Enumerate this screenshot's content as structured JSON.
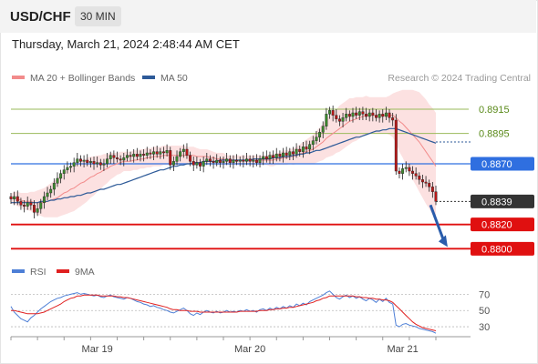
{
  "header": {
    "symbol": "USD/CHF",
    "timeframe": "30 MIN"
  },
  "datetime": "Thursday, March 21, 2024 2:48:44 AM CET",
  "legend": {
    "bollinger_label": "MA 20 + Bollinger Bands",
    "bollinger_color": "#f28b8b",
    "ma50_label": "MA 50",
    "ma50_color": "#2d5a98",
    "rsi_label": "RSI",
    "rsi_color": "#4d7fd6",
    "ma9_label": "9MA",
    "ma9_color": "#e02020"
  },
  "credit": "Research © 2024 Trading Central",
  "chart_data": {
    "type": "candlestick",
    "ylim": [
      0.8795,
      0.893
    ],
    "x_range": [
      0,
      128
    ],
    "xlabels": [
      {
        "t": 26,
        "label": "Mar 19"
      },
      {
        "t": 72,
        "label": "Mar 20"
      },
      {
        "t": 118,
        "label": "Mar 21"
      }
    ],
    "close": [
      0.8841,
      0.8843,
      0.8839,
      0.8836,
      0.8835,
      0.8838,
      0.8836,
      0.883,
      0.8833,
      0.8838,
      0.8843,
      0.8846,
      0.8849,
      0.8854,
      0.8858,
      0.8862,
      0.8865,
      0.8867,
      0.8868,
      0.8871,
      0.8874,
      0.8872,
      0.8873,
      0.8871,
      0.8872,
      0.887,
      0.8871,
      0.8869,
      0.887,
      0.8874,
      0.8877,
      0.8875,
      0.8874,
      0.8873,
      0.8875,
      0.8877,
      0.8876,
      0.8878,
      0.8876,
      0.8878,
      0.8877,
      0.8879,
      0.8878,
      0.888,
      0.8878,
      0.888,
      0.8879,
      0.8881,
      0.8869,
      0.8872,
      0.8876,
      0.888,
      0.8882,
      0.8877,
      0.8872,
      0.8869,
      0.8871,
      0.8868,
      0.8872,
      0.8874,
      0.8872,
      0.8871,
      0.8873,
      0.8871,
      0.8872,
      0.8874,
      0.8871,
      0.8873,
      0.8872,
      0.8873,
      0.8872,
      0.8874,
      0.8872,
      0.8873,
      0.8871,
      0.8874,
      0.8876,
      0.8874,
      0.8877,
      0.8875,
      0.8878,
      0.8876,
      0.8879,
      0.8877,
      0.888,
      0.8878,
      0.8882,
      0.888,
      0.8884,
      0.8882,
      0.8886,
      0.8889,
      0.8892,
      0.8896,
      0.8901,
      0.8911,
      0.8914,
      0.891,
      0.8907,
      0.8905,
      0.8908,
      0.8911,
      0.8909,
      0.8912,
      0.891,
      0.8913,
      0.8911,
      0.8909,
      0.8912,
      0.891,
      0.8908,
      0.8911,
      0.8909,
      0.8912,
      0.8908,
      0.8906,
      0.8864,
      0.8862,
      0.8866,
      0.8867,
      0.8864,
      0.8862,
      0.886,
      0.8857,
      0.8855,
      0.8854,
      0.8851,
      0.8847,
      0.8839
    ],
    "ma20": [
      0.8841,
      0.8842,
      0.8841,
      0.884,
      0.8839,
      0.8839,
      0.8839,
      0.8838,
      0.8838,
      0.8838,
      0.8838,
      0.8839,
      0.884,
      0.8841,
      0.8842,
      0.8844,
      0.8846,
      0.8847,
      0.8849,
      0.885,
      0.8852,
      0.8854,
      0.8855,
      0.8857,
      0.8859,
      0.886,
      0.8862,
      0.8863,
      0.8865,
      0.8866,
      0.8868,
      0.8869,
      0.887,
      0.8871,
      0.8872,
      0.8872,
      0.8872,
      0.8873,
      0.8873,
      0.8874,
      0.8874,
      0.8875,
      0.8875,
      0.8876,
      0.8876,
      0.8876,
      0.8877,
      0.8877,
      0.8877,
      0.8877,
      0.8877,
      0.8877,
      0.8877,
      0.8877,
      0.8877,
      0.8877,
      0.8876,
      0.8876,
      0.8876,
      0.8876,
      0.8875,
      0.8875,
      0.8874,
      0.8874,
      0.8874,
      0.8873,
      0.8873,
      0.8873,
      0.8873,
      0.8873,
      0.8873,
      0.8873,
      0.8873,
      0.8873,
      0.8873,
      0.8873,
      0.8873,
      0.8873,
      0.8873,
      0.8873,
      0.8874,
      0.8874,
      0.8875,
      0.8875,
      0.8876,
      0.8876,
      0.8877,
      0.8878,
      0.8879,
      0.888,
      0.8881,
      0.8882,
      0.8884,
      0.8886,
      0.8888,
      0.8891,
      0.8893,
      0.8895,
      0.8897,
      0.8899,
      0.8901,
      0.8903,
      0.8905,
      0.8906,
      0.8907,
      0.8908,
      0.8909,
      0.891,
      0.891,
      0.891,
      0.891,
      0.891,
      0.891,
      0.891,
      0.891,
      0.891,
      0.8908,
      0.8905,
      0.8903,
      0.89,
      0.8897,
      0.8894,
      0.8891,
      0.8888,
      0.8884,
      0.888,
      0.8876,
      0.8872,
      0.8868
    ],
    "bb_width": [
      0.0004,
      0.0005,
      0.0006,
      0.0006,
      0.0007,
      0.0007,
      0.0008,
      0.0009,
      0.001,
      0.0011,
      0.0012,
      0.0013,
      0.0014,
      0.0015,
      0.0016,
      0.0017,
      0.0018,
      0.0018,
      0.0019,
      0.0019,
      0.0019,
      0.0019,
      0.0018,
      0.0018,
      0.0017,
      0.0016,
      0.0015,
      0.0014,
      0.0013,
      0.0012,
      0.0011,
      0.001,
      0.0009,
      0.0009,
      0.0008,
      0.0008,
      0.0008,
      0.0008,
      0.0008,
      0.0008,
      0.0008,
      0.0008,
      0.0008,
      0.0008,
      0.0008,
      0.0008,
      0.0008,
      0.0008,
      0.0008,
      0.0008,
      0.0008,
      0.0008,
      0.0008,
      0.0007,
      0.0007,
      0.0007,
      0.0007,
      0.0006,
      0.0006,
      0.0006,
      0.0006,
      0.0005,
      0.0005,
      0.0005,
      0.0005,
      0.0004,
      0.0004,
      0.0004,
      0.0004,
      0.0004,
      0.0004,
      0.0004,
      0.0004,
      0.0004,
      0.0004,
      0.0004,
      0.0004,
      0.0004,
      0.0005,
      0.0005,
      0.0005,
      0.0005,
      0.0006,
      0.0006,
      0.0006,
      0.0007,
      0.0007,
      0.0008,
      0.0009,
      0.001,
      0.0011,
      0.0012,
      0.0013,
      0.0014,
      0.0015,
      0.0016,
      0.0017,
      0.0018,
      0.0018,
      0.0019,
      0.0019,
      0.0019,
      0.0019,
      0.0018,
      0.0018,
      0.0017,
      0.0016,
      0.0016,
      0.0015,
      0.0015,
      0.0015,
      0.0015,
      0.0015,
      0.0015,
      0.0016,
      0.0018,
      0.0021,
      0.0025,
      0.0028,
      0.0031,
      0.0034,
      0.0037,
      0.0039,
      0.0041,
      0.0042,
      0.0043,
      0.0043,
      0.0044,
      0.0044
    ],
    "ma50": [
      0.8838,
      0.8838,
      0.8838,
      0.8838,
      0.8838,
      0.8838,
      0.8838,
      0.8838,
      0.8838,
      0.8839,
      0.8839,
      0.8839,
      0.884,
      0.884,
      0.8841,
      0.8841,
      0.8842,
      0.8842,
      0.8843,
      0.8843,
      0.8844,
      0.8844,
      0.8845,
      0.8846,
      0.8846,
      0.8847,
      0.8848,
      0.8849,
      0.8849,
      0.885,
      0.8851,
      0.8852,
      0.8853,
      0.8853,
      0.8854,
      0.8855,
      0.8856,
      0.8857,
      0.8858,
      0.8859,
      0.886,
      0.8861,
      0.8862,
      0.8863,
      0.8864,
      0.8865,
      0.8865,
      0.8866,
      0.8867,
      0.8868,
      0.8868,
      0.8869,
      0.8869,
      0.887,
      0.887,
      0.8871,
      0.8871,
      0.8871,
      0.8872,
      0.8872,
      0.8872,
      0.8872,
      0.8872,
      0.8873,
      0.8873,
      0.8873,
      0.8873,
      0.8873,
      0.8873,
      0.8873,
      0.8873,
      0.8873,
      0.8873,
      0.8874,
      0.8874,
      0.8874,
      0.8874,
      0.8874,
      0.8874,
      0.8875,
      0.8875,
      0.8875,
      0.8876,
      0.8876,
      0.8876,
      0.8877,
      0.8877,
      0.8878,
      0.8878,
      0.8879,
      0.8879,
      0.888,
      0.8881,
      0.8881,
      0.8882,
      0.8883,
      0.8884,
      0.8885,
      0.8886,
      0.8887,
      0.8888,
      0.8889,
      0.889,
      0.8891,
      0.8892,
      0.8892,
      0.8893,
      0.8894,
      0.8895,
      0.8896,
      0.8897,
      0.8897,
      0.8898,
      0.8898,
      0.8899,
      0.8899,
      0.8899,
      0.8898,
      0.8897,
      0.8896,
      0.8895,
      0.8894,
      0.8893,
      0.8892,
      0.8891,
      0.889,
      0.8889,
      0.8888,
      0.8887
    ],
    "levels": [
      {
        "value": 0.8915,
        "label": "0.8915",
        "color": "#9aba5a",
        "style": "thin",
        "text_color": "#5a8a1a"
      },
      {
        "value": 0.8895,
        "label": "0.8895",
        "color": "#9aba5a",
        "style": "thin",
        "text_color": "#5a8a1a"
      },
      {
        "value": 0.887,
        "label": "0.8870",
        "color": "#2f6fe0",
        "style": "box"
      },
      {
        "value": 0.8839,
        "label": "0.8839",
        "color": "#333333",
        "style": "dotted"
      },
      {
        "value": 0.882,
        "label": "0.8820",
        "color": "#e01010",
        "style": "box"
      },
      {
        "value": 0.88,
        "label": "0.8800",
        "color": "#e01010",
        "style": "box"
      }
    ],
    "ma50_extension_value": 0.8888,
    "arrow": {
      "from": [
        125,
        0.8839
      ],
      "to": [
        131,
        0.88
      ]
    },
    "rsi": {
      "ylim": [
        20,
        85
      ],
      "levels": [
        70,
        50,
        30
      ],
      "rsi": [
        55,
        48,
        44,
        40,
        38,
        36,
        41,
        44,
        48,
        52,
        55,
        58,
        61,
        63,
        65,
        66,
        68,
        69,
        70,
        71,
        72,
        70,
        71,
        70,
        69,
        68,
        69,
        67,
        66,
        68,
        69,
        67,
        66,
        65,
        64,
        66,
        65,
        63,
        61,
        60,
        58,
        57,
        55,
        56,
        54,
        53,
        51,
        50,
        48,
        47,
        49,
        51,
        53,
        50,
        46,
        44,
        47,
        45,
        48,
        50,
        48,
        47,
        49,
        47,
        48,
        50,
        48,
        49,
        48,
        50,
        49,
        51,
        49,
        50,
        48,
        51,
        52,
        50,
        53,
        51,
        54,
        52,
        55,
        53,
        56,
        54,
        58,
        56,
        59,
        57,
        61,
        63,
        65,
        67,
        69,
        72,
        74,
        70,
        66,
        64,
        67,
        69,
        66,
        68,
        65,
        67,
        64,
        62,
        65,
        63,
        60,
        64,
        61,
        65,
        60,
        58,
        32,
        30,
        33,
        34,
        32,
        31,
        30,
        28,
        27,
        26,
        25,
        24,
        22
      ],
      "ma9": [
        50,
        50,
        49,
        48,
        47,
        46,
        46,
        46,
        46,
        47,
        48,
        50,
        52,
        54,
        56,
        58,
        61,
        63,
        65,
        66,
        68,
        68,
        69,
        69,
        69,
        69,
        69,
        68,
        68,
        68,
        68,
        68,
        67,
        67,
        66,
        66,
        65,
        64,
        63,
        62,
        61,
        60,
        59,
        58,
        57,
        56,
        55,
        54,
        52,
        51,
        51,
        50,
        50,
        50,
        49,
        49,
        49,
        48,
        48,
        48,
        48,
        48,
        48,
        48,
        48,
        48,
        48,
        48,
        48,
        49,
        49,
        49,
        49,
        49,
        49,
        50,
        50,
        50,
        51,
        51,
        52,
        52,
        53,
        53,
        54,
        54,
        55,
        56,
        57,
        58,
        59,
        60,
        62,
        63,
        65,
        66,
        68,
        68,
        68,
        68,
        68,
        68,
        68,
        68,
        67,
        67,
        66,
        66,
        65,
        65,
        64,
        64,
        63,
        63,
        62,
        60,
        56,
        52,
        48,
        44,
        40,
        36,
        33,
        31,
        29,
        28,
        27,
        26,
        25
      ]
    }
  }
}
